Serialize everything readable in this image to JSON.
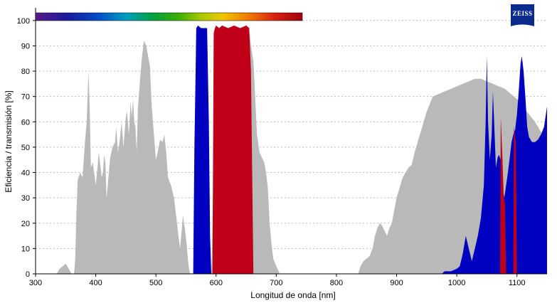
{
  "chart_data": {
    "type": "area",
    "xlabel": "Longitud de onda [nm]",
    "ylabel": "Eficiencia / transmisión [%]",
    "xlim": [
      300,
      1150
    ],
    "ylim": [
      0,
      105
    ],
    "x_ticks": [
      300,
      400,
      500,
      600,
      700,
      800,
      900,
      1000,
      1100
    ],
    "y_ticks": [
      0,
      10,
      20,
      30,
      40,
      50,
      60,
      70,
      80,
      90,
      100
    ],
    "grid": "horizontal-dotted",
    "logo": "ZEISS",
    "colors": {
      "gray": "#b9b9b9",
      "blue": "#0000c0",
      "red": "#c00018",
      "axis": "#000000",
      "grid": "#bdbdbd"
    },
    "series": [
      {
        "color": "#b9b9b9",
        "points": [
          [
            335,
            0
          ],
          [
            340,
            2
          ],
          [
            345,
            3
          ],
          [
            350,
            4
          ],
          [
            355,
            2
          ],
          [
            360,
            0
          ],
          [
            364,
            0
          ],
          [
            366,
            6
          ],
          [
            368,
            25
          ],
          [
            370,
            37
          ],
          [
            374,
            40
          ],
          [
            378,
            38
          ],
          [
            380,
            45
          ],
          [
            382,
            52
          ],
          [
            385,
            60
          ],
          [
            388,
            80
          ],
          [
            390,
            65
          ],
          [
            392,
            42
          ],
          [
            395,
            44
          ],
          [
            400,
            35
          ],
          [
            403,
            42
          ],
          [
            405,
            48
          ],
          [
            407,
            44
          ],
          [
            410,
            38
          ],
          [
            412,
            40
          ],
          [
            414,
            47
          ],
          [
            416,
            44
          ],
          [
            418,
            30
          ],
          [
            420,
            35
          ],
          [
            424,
            46
          ],
          [
            428,
            50
          ],
          [
            432,
            52
          ],
          [
            434,
            58
          ],
          [
            437,
            48
          ],
          [
            440,
            53
          ],
          [
            443,
            60
          ],
          [
            446,
            50
          ],
          [
            448,
            56
          ],
          [
            450,
            62
          ],
          [
            452,
            64
          ],
          [
            455,
            55
          ],
          [
            458,
            68
          ],
          [
            460,
            62
          ],
          [
            462,
            69
          ],
          [
            464,
            60
          ],
          [
            466,
            58
          ],
          [
            468,
            48
          ],
          [
            470,
            65
          ],
          [
            474,
            78
          ],
          [
            477,
            86
          ],
          [
            480,
            92
          ],
          [
            484,
            90
          ],
          [
            487,
            86
          ],
          [
            490,
            82
          ],
          [
            493,
            66
          ],
          [
            496,
            57
          ],
          [
            500,
            45
          ],
          [
            503,
            48
          ],
          [
            507,
            53
          ],
          [
            511,
            52
          ],
          [
            514,
            55
          ],
          [
            517,
            48
          ],
          [
            520,
            38
          ],
          [
            525,
            35
          ],
          [
            530,
            30
          ],
          [
            535,
            20
          ],
          [
            538,
            14
          ],
          [
            540,
            10
          ],
          [
            542,
            15
          ],
          [
            545,
            23
          ],
          [
            548,
            18
          ],
          [
            551,
            12
          ],
          [
            553,
            6
          ],
          [
            555,
            2
          ],
          [
            557,
            0
          ],
          [
            592,
            0
          ],
          [
            594,
            20
          ],
          [
            596,
            44
          ],
          [
            598,
            60
          ],
          [
            600,
            70
          ],
          [
            602,
            83
          ],
          [
            604,
            90
          ],
          [
            606,
            96
          ],
          [
            610,
            97
          ],
          [
            620,
            97
          ],
          [
            630,
            97
          ],
          [
            640,
            97
          ],
          [
            650,
            97
          ],
          [
            655,
            96
          ],
          [
            658,
            90
          ],
          [
            662,
            84
          ],
          [
            665,
            70
          ],
          [
            668,
            55
          ],
          [
            672,
            48
          ],
          [
            676,
            46
          ],
          [
            680,
            44
          ],
          [
            683,
            40
          ],
          [
            686,
            34
          ],
          [
            689,
            20
          ],
          [
            692,
            12
          ],
          [
            695,
            6
          ],
          [
            700,
            3
          ],
          [
            706,
            0
          ],
          [
            836,
            0
          ],
          [
            840,
            3
          ],
          [
            845,
            5
          ],
          [
            850,
            6
          ],
          [
            855,
            7
          ],
          [
            860,
            10
          ],
          [
            864,
            15
          ],
          [
            868,
            18
          ],
          [
            872,
            20
          ],
          [
            876,
            19
          ],
          [
            880,
            17
          ],
          [
            884,
            15
          ],
          [
            888,
            18
          ],
          [
            892,
            20
          ],
          [
            896,
            25
          ],
          [
            900,
            30
          ],
          [
            905,
            34
          ],
          [
            910,
            38
          ],
          [
            915,
            40
          ],
          [
            920,
            42
          ],
          [
            925,
            43
          ],
          [
            930,
            48
          ],
          [
            935,
            52
          ],
          [
            940,
            56
          ],
          [
            945,
            60
          ],
          [
            950,
            64
          ],
          [
            955,
            67
          ],
          [
            960,
            70
          ],
          [
            970,
            71
          ],
          [
            980,
            72
          ],
          [
            990,
            73
          ],
          [
            1000,
            74
          ],
          [
            1010,
            75
          ],
          [
            1020,
            76
          ],
          [
            1030,
            77
          ],
          [
            1040,
            77
          ],
          [
            1050,
            76
          ],
          [
            1060,
            75
          ],
          [
            1070,
            74
          ],
          [
            1080,
            73
          ],
          [
            1090,
            71
          ],
          [
            1100,
            69
          ],
          [
            1110,
            66
          ],
          [
            1120,
            63
          ],
          [
            1130,
            60
          ],
          [
            1140,
            56
          ],
          [
            1150,
            52
          ],
          [
            1150,
            0
          ]
        ]
      },
      {
        "color": "#0000c0",
        "points": [
          [
            562,
            0
          ],
          [
            564,
            50
          ],
          [
            566,
            80
          ],
          [
            567,
            97
          ],
          [
            570,
            98
          ],
          [
            575,
            97
          ],
          [
            580,
            97
          ],
          [
            585,
            97
          ],
          [
            588,
            60
          ],
          [
            590,
            15
          ],
          [
            592,
            0
          ],
          [
            975,
            0
          ],
          [
            980,
            1
          ],
          [
            990,
            1
          ],
          [
            1000,
            2
          ],
          [
            1005,
            3
          ],
          [
            1010,
            8
          ],
          [
            1015,
            15
          ],
          [
            1020,
            10
          ],
          [
            1025,
            5
          ],
          [
            1030,
            10
          ],
          [
            1035,
            15
          ],
          [
            1040,
            22
          ],
          [
            1045,
            35
          ],
          [
            1048,
            60
          ],
          [
            1050,
            86
          ],
          [
            1052,
            60
          ],
          [
            1055,
            45
          ],
          [
            1058,
            55
          ],
          [
            1060,
            72
          ],
          [
            1062,
            60
          ],
          [
            1065,
            42
          ],
          [
            1068,
            46
          ],
          [
            1070,
            47
          ],
          [
            1073,
            45
          ],
          [
            1076,
            34
          ],
          [
            1079,
            30
          ],
          [
            1082,
            35
          ],
          [
            1085,
            40
          ],
          [
            1088,
            46
          ],
          [
            1091,
            52
          ],
          [
            1094,
            55
          ],
          [
            1097,
            57
          ],
          [
            1100,
            63
          ],
          [
            1103,
            72
          ],
          [
            1106,
            83
          ],
          [
            1108,
            86
          ],
          [
            1111,
            80
          ],
          [
            1114,
            70
          ],
          [
            1117,
            58
          ],
          [
            1120,
            54
          ],
          [
            1125,
            52
          ],
          [
            1130,
            52
          ],
          [
            1135,
            53
          ],
          [
            1140,
            55
          ],
          [
            1145,
            58
          ],
          [
            1150,
            66
          ],
          [
            1150,
            0
          ]
        ]
      },
      {
        "color": "#c00018",
        "points": [
          [
            594,
            0
          ],
          [
            596,
            95
          ],
          [
            598,
            97
          ],
          [
            600,
            98
          ],
          [
            605,
            97
          ],
          [
            610,
            98
          ],
          [
            620,
            97
          ],
          [
            630,
            98
          ],
          [
            640,
            97
          ],
          [
            650,
            98
          ],
          [
            655,
            97
          ],
          [
            658,
            80
          ],
          [
            660,
            40
          ],
          [
            662,
            0
          ],
          [
            1072,
            0
          ],
          [
            1073,
            62
          ],
          [
            1076,
            45
          ],
          [
            1078,
            30
          ],
          [
            1080,
            28
          ],
          [
            1082,
            0
          ],
          [
            1094,
            0
          ],
          [
            1095,
            58
          ],
          [
            1098,
            52
          ],
          [
            1100,
            0
          ]
        ]
      }
    ]
  }
}
